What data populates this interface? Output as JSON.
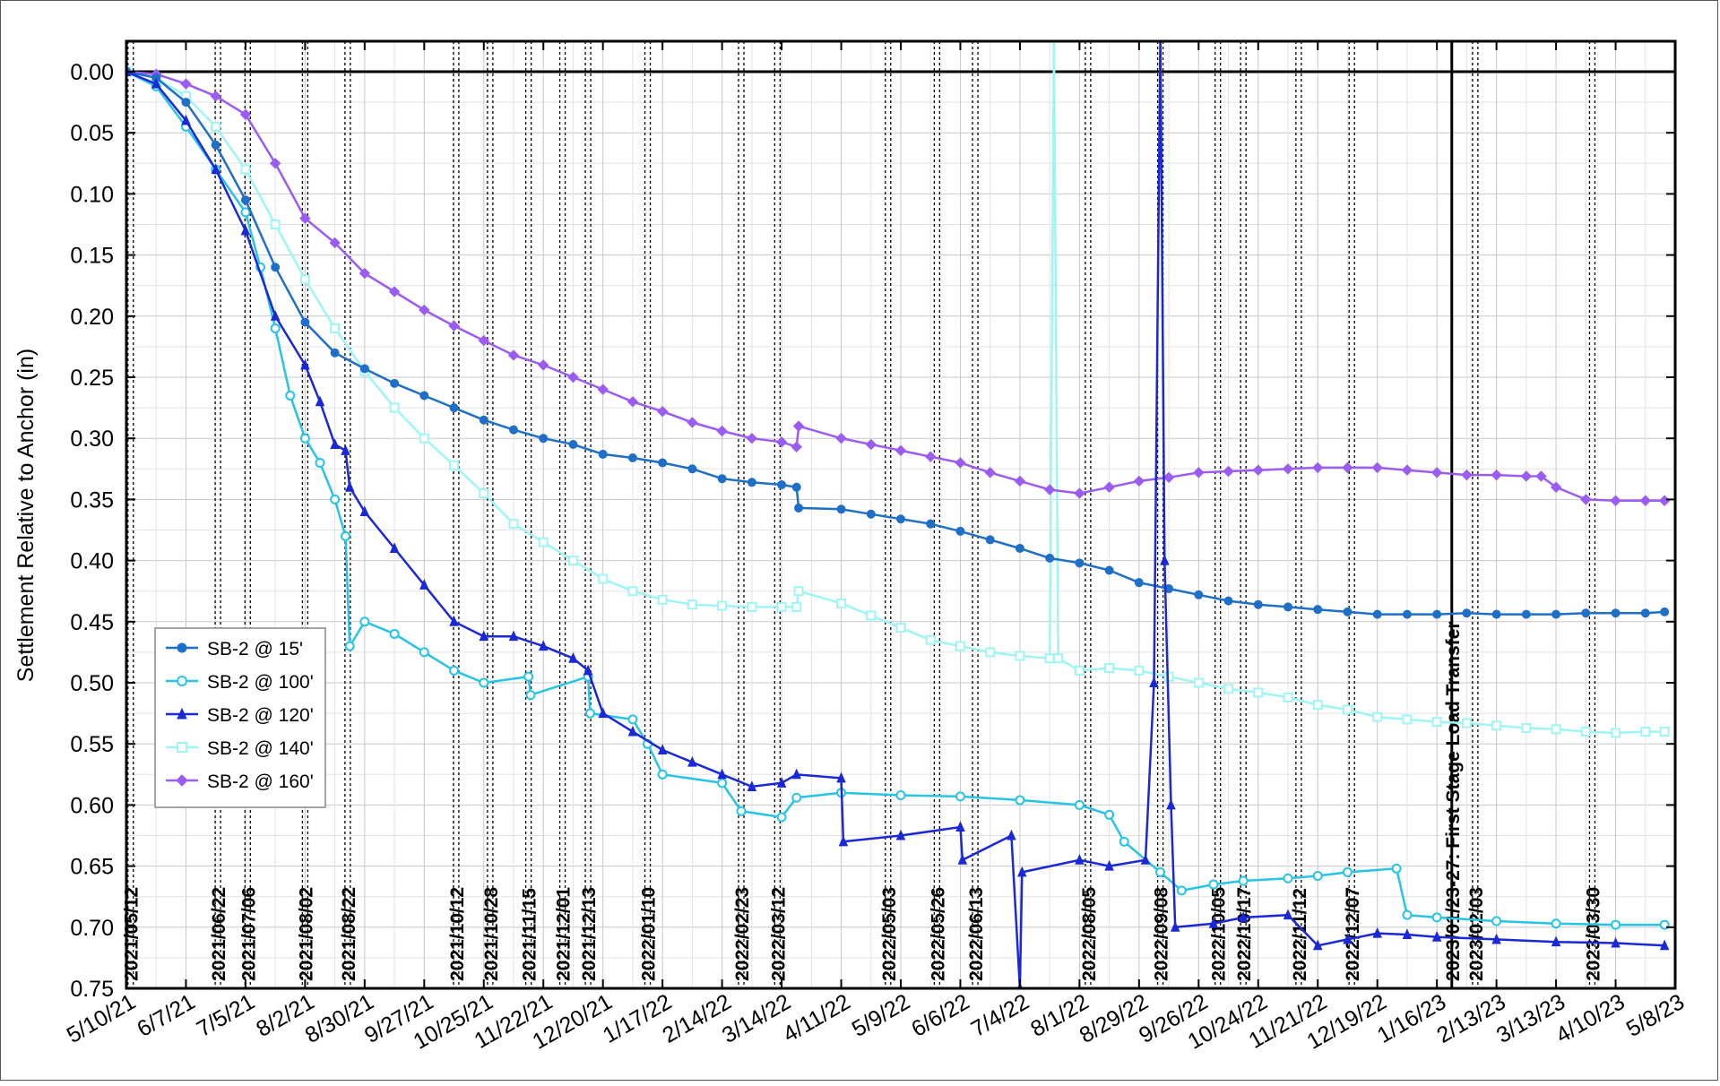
{
  "chart_data": {
    "type": "line",
    "title": "",
    "xlabel": "",
    "ylabel": "Settlement Relative to Anchor (in)",
    "xlim": [
      "2021-05-10",
      "2023-05-08"
    ],
    "ylim": [
      0.0,
      0.75
    ],
    "y_inverted": true,
    "grid": true,
    "legend_position": "left-center",
    "y_ticks": [
      "0.00",
      "0.05",
      "0.10",
      "0.15",
      "0.20",
      "0.25",
      "0.30",
      "0.35",
      "0.40",
      "0.45",
      "0.50",
      "0.55",
      "0.60",
      "0.65",
      "0.70",
      "0.75"
    ],
    "x_tick_labels": [
      "5/10/21",
      "6/7/21",
      "7/5/21",
      "8/2/21",
      "8/30/21",
      "9/27/21",
      "10/25/21",
      "11/22/21",
      "12/20/21",
      "1/17/22",
      "2/14/22",
      "3/14/22",
      "4/11/22",
      "5/9/22",
      "6/6/22",
      "7/4/22",
      "8/1/22",
      "8/29/22",
      "9/26/22",
      "10/24/22",
      "11/21/22",
      "12/19/22",
      "1/16/23",
      "2/13/23",
      "3/13/23",
      "4/10/23",
      "5/8/23"
    ],
    "x_tick_dates": [
      "2021-05-10",
      "2021-06-07",
      "2021-07-05",
      "2021-08-02",
      "2021-08-30",
      "2021-09-27",
      "2021-10-25",
      "2021-11-22",
      "2021-12-20",
      "2022-01-17",
      "2022-02-14",
      "2022-03-14",
      "2022-04-11",
      "2022-05-09",
      "2022-06-06",
      "2022-07-04",
      "2022-08-01",
      "2022-08-29",
      "2022-09-26",
      "2022-10-24",
      "2022-11-21",
      "2022-12-19",
      "2023-01-16",
      "2023-02-13",
      "2023-03-13",
      "2023-04-10",
      "2023-05-08"
    ],
    "events": [
      {
        "date": "2021-05-12",
        "label": "2021/05/12"
      },
      {
        "date": "2021-06-22",
        "label": "2021/06/22"
      },
      {
        "date": "2021-07-06",
        "label": "2021/07/06"
      },
      {
        "date": "2021-08-02",
        "label": "2021/08/02"
      },
      {
        "date": "2021-08-22",
        "label": "2021/08/22"
      },
      {
        "date": "2021-10-12",
        "label": "2021/10/12"
      },
      {
        "date": "2021-10-28",
        "label": "2021/10/28"
      },
      {
        "date": "2021-11-15",
        "label": "2021/11/15"
      },
      {
        "date": "2021-12-01",
        "label": "2021/12/01"
      },
      {
        "date": "2021-12-13",
        "label": "2021/12/13"
      },
      {
        "date": "2022-01-10",
        "label": "2022/01/10"
      },
      {
        "date": "2022-02-23",
        "label": "2022/02/23"
      },
      {
        "date": "2022-03-12",
        "label": "2022/03/12"
      },
      {
        "date": "2022-05-03",
        "label": "2022/05/03"
      },
      {
        "date": "2022-05-26",
        "label": "2022/05/26"
      },
      {
        "date": "2022-06-13",
        "label": "2022/06/13"
      },
      {
        "date": "2022-08-05",
        "label": "2022/08/05"
      },
      {
        "date": "2022-09-08",
        "label": "2022/09/08"
      },
      {
        "date": "2022-10-05",
        "label": "2022/10/05"
      },
      {
        "date": "2022-10-17",
        "label": "2022/10/17"
      },
      {
        "date": "2022-11-12",
        "label": "2022/11/12"
      },
      {
        "date": "2022-12-07",
        "label": "2022/12/07"
      },
      {
        "date": "2023-01-23",
        "label": "2023/01/23-27: First Stage Load Transfer",
        "solid": true
      },
      {
        "date": "2023-02-03",
        "label": "2023/02/03"
      },
      {
        "date": "2023-03-30",
        "label": "2023/03/30"
      }
    ],
    "series": [
      {
        "name": "SB-2 @ 15'",
        "color": "#1f6fc8",
        "marker": "circle-filled",
        "x": [
          "2021-05-10",
          "2021-05-24",
          "2021-06-07",
          "2021-06-21",
          "2021-07-05",
          "2021-07-19",
          "2021-08-02",
          "2021-08-16",
          "2021-08-30",
          "2021-09-13",
          "2021-09-27",
          "2021-10-11",
          "2021-10-25",
          "2021-11-08",
          "2021-11-22",
          "2021-12-06",
          "2021-12-20",
          "2022-01-03",
          "2022-01-17",
          "2022-01-31",
          "2022-02-14",
          "2022-02-28",
          "2022-03-14",
          "2022-03-21",
          "2022-03-22",
          "2022-04-11",
          "2022-04-25",
          "2022-05-09",
          "2022-05-23",
          "2022-06-06",
          "2022-06-20",
          "2022-07-04",
          "2022-07-18",
          "2022-08-01",
          "2022-08-15",
          "2022-08-29",
          "2022-09-12",
          "2022-09-26",
          "2022-10-10",
          "2022-10-24",
          "2022-11-07",
          "2022-11-21",
          "2022-12-05",
          "2022-12-19",
          "2023-01-02",
          "2023-01-16",
          "2023-01-30",
          "2023-02-13",
          "2023-02-27",
          "2023-03-13",
          "2023-03-27",
          "2023-04-10",
          "2023-04-24",
          "2023-05-03"
        ],
        "values": [
          0.0,
          0.005,
          0.025,
          0.06,
          0.105,
          0.16,
          0.205,
          0.23,
          0.243,
          0.255,
          0.265,
          0.275,
          0.285,
          0.293,
          0.3,
          0.305,
          0.313,
          0.316,
          0.32,
          0.325,
          0.333,
          0.336,
          0.338,
          0.34,
          0.357,
          0.358,
          0.362,
          0.366,
          0.37,
          0.376,
          0.383,
          0.39,
          0.398,
          0.402,
          0.408,
          0.418,
          0.423,
          0.428,
          0.433,
          0.436,
          0.438,
          0.44,
          0.442,
          0.444,
          0.444,
          0.444,
          0.443,
          0.444,
          0.444,
          0.444,
          0.443,
          0.443,
          0.443,
          0.442
        ]
      },
      {
        "name": "SB-2 @ 100'",
        "color": "#27c4e6",
        "marker": "circle-open",
        "x": [
          "2021-05-10",
          "2021-05-24",
          "2021-06-07",
          "2021-06-21",
          "2021-07-05",
          "2021-07-12",
          "2021-07-19",
          "2021-07-26",
          "2021-08-02",
          "2021-08-09",
          "2021-08-16",
          "2021-08-21",
          "2021-08-23",
          "2021-08-30",
          "2021-09-13",
          "2021-09-27",
          "2021-10-11",
          "2021-10-25",
          "2021-11-15",
          "2021-11-16",
          "2021-12-13",
          "2021-12-14",
          "2022-01-03",
          "2022-01-10",
          "2022-01-17",
          "2022-02-14",
          "2022-02-23",
          "2022-03-14",
          "2022-03-21",
          "2022-04-11",
          "2022-05-09",
          "2022-06-06",
          "2022-07-04",
          "2022-08-01",
          "2022-08-15",
          "2022-08-22",
          "2022-09-08",
          "2022-09-18",
          "2022-10-03",
          "2022-10-17",
          "2022-11-07",
          "2022-11-21",
          "2022-12-05",
          "2022-12-28",
          "2023-01-02",
          "2023-01-16",
          "2023-02-13",
          "2023-03-13",
          "2023-04-10",
          "2023-05-03"
        ],
        "values": [
          0.0,
          0.012,
          0.045,
          0.08,
          0.115,
          0.16,
          0.21,
          0.265,
          0.3,
          0.32,
          0.35,
          0.38,
          0.47,
          0.45,
          0.46,
          0.475,
          0.49,
          0.5,
          0.495,
          0.51,
          0.495,
          0.525,
          0.53,
          0.55,
          0.575,
          0.582,
          0.605,
          0.61,
          0.594,
          0.59,
          0.592,
          0.593,
          0.596,
          0.6,
          0.608,
          0.63,
          0.655,
          0.67,
          0.665,
          0.662,
          0.66,
          0.658,
          0.655,
          0.652,
          0.69,
          0.692,
          0.695,
          0.697,
          0.698,
          0.698
        ]
      },
      {
        "name": "SB-2 @ 120'",
        "color": "#1a28d8",
        "marker": "triangle",
        "x": [
          "2021-05-10",
          "2021-05-24",
          "2021-06-07",
          "2021-06-21",
          "2021-07-05",
          "2021-07-19",
          "2021-08-02",
          "2021-08-09",
          "2021-08-16",
          "2021-08-21",
          "2021-08-23",
          "2021-08-30",
          "2021-09-13",
          "2021-09-27",
          "2021-10-11",
          "2021-10-25",
          "2021-11-08",
          "2021-11-22",
          "2021-12-06",
          "2021-12-13",
          "2021-12-20",
          "2022-01-03",
          "2022-01-17",
          "2022-01-31",
          "2022-02-14",
          "2022-02-28",
          "2022-03-14",
          "2022-03-21",
          "2022-04-11",
          "2022-04-12",
          "2022-05-09",
          "2022-06-06",
          "2022-06-07",
          "2022-06-30",
          "2022-07-04",
          "2022-07-05",
          "2022-08-01",
          "2022-08-15",
          "2022-09-01",
          "2022-09-05",
          "2022-09-08",
          "2022-09-10",
          "2022-09-13",
          "2022-09-15",
          "2022-10-03",
          "2022-10-17",
          "2022-11-07",
          "2022-11-21",
          "2022-12-05",
          "2022-12-19",
          "2023-01-02",
          "2023-01-16",
          "2023-02-13",
          "2023-03-13",
          "2023-04-10",
          "2023-05-03"
        ],
        "values": [
          0.0,
          0.01,
          0.04,
          0.08,
          0.13,
          0.2,
          0.24,
          0.27,
          0.305,
          0.31,
          0.34,
          0.36,
          0.39,
          0.42,
          0.45,
          0.462,
          0.462,
          0.47,
          0.48,
          0.49,
          0.525,
          0.54,
          0.555,
          0.565,
          0.575,
          0.585,
          0.582,
          0.575,
          0.578,
          0.63,
          0.625,
          0.618,
          0.645,
          0.625,
          0.75,
          0.655,
          0.645,
          0.65,
          0.645,
          0.5,
          -0.05,
          0.4,
          0.6,
          0.7,
          0.697,
          0.692,
          0.69,
          0.715,
          0.71,
          0.705,
          0.706,
          0.708,
          0.71,
          0.712,
          0.713,
          0.715
        ]
      },
      {
        "name": "SB-2 @ 140'",
        "color": "#9ef6f4",
        "marker": "square-open",
        "x": [
          "2021-05-10",
          "2021-05-24",
          "2021-06-07",
          "2021-06-21",
          "2021-07-05",
          "2021-07-19",
          "2021-08-02",
          "2021-08-16",
          "2021-08-30",
          "2021-09-13",
          "2021-09-27",
          "2021-10-11",
          "2021-10-25",
          "2021-11-08",
          "2021-11-22",
          "2021-12-06",
          "2021-12-20",
          "2022-01-03",
          "2022-01-17",
          "2022-01-31",
          "2022-02-14",
          "2022-02-28",
          "2022-03-14",
          "2022-03-21",
          "2022-03-22",
          "2022-04-11",
          "2022-04-25",
          "2022-05-09",
          "2022-05-23",
          "2022-06-06",
          "2022-06-20",
          "2022-07-04",
          "2022-07-18",
          "2022-07-20",
          "2022-07-22",
          "2022-08-01",
          "2022-08-15",
          "2022-08-29",
          "2022-09-12",
          "2022-09-26",
          "2022-10-10",
          "2022-10-24",
          "2022-11-07",
          "2022-11-21",
          "2022-12-05",
          "2022-12-19",
          "2023-01-02",
          "2023-01-16",
          "2023-01-30",
          "2023-02-13",
          "2023-02-27",
          "2023-03-13",
          "2023-03-27",
          "2023-04-10",
          "2023-04-24",
          "2023-05-03"
        ],
        "values": [
          0.0,
          0.005,
          0.02,
          0.045,
          0.08,
          0.125,
          0.17,
          0.21,
          0.245,
          0.275,
          0.3,
          0.322,
          0.345,
          0.37,
          0.385,
          0.4,
          0.415,
          0.425,
          0.432,
          0.436,
          0.437,
          0.438,
          0.438,
          0.438,
          0.425,
          0.435,
          0.445,
          0.455,
          0.465,
          0.47,
          0.475,
          0.478,
          0.48,
          -0.03,
          0.48,
          0.49,
          0.488,
          0.49,
          0.495,
          0.5,
          0.505,
          0.508,
          0.512,
          0.518,
          0.522,
          0.528,
          0.53,
          0.532,
          0.533,
          0.535,
          0.537,
          0.538,
          0.54,
          0.541,
          0.54,
          0.54
        ]
      },
      {
        "name": "SB-2 @ 160'",
        "color": "#9b5cf2",
        "marker": "diamond",
        "x": [
          "2021-05-10",
          "2021-05-24",
          "2021-06-07",
          "2021-06-21",
          "2021-07-05",
          "2021-07-19",
          "2021-08-02",
          "2021-08-16",
          "2021-08-30",
          "2021-09-13",
          "2021-09-27",
          "2021-10-11",
          "2021-10-25",
          "2021-11-08",
          "2021-11-22",
          "2021-12-06",
          "2021-12-20",
          "2022-01-03",
          "2022-01-17",
          "2022-01-31",
          "2022-02-14",
          "2022-02-28",
          "2022-03-14",
          "2022-03-21",
          "2022-03-22",
          "2022-04-11",
          "2022-04-25",
          "2022-05-09",
          "2022-05-23",
          "2022-06-06",
          "2022-06-20",
          "2022-07-04",
          "2022-07-18",
          "2022-08-01",
          "2022-08-15",
          "2022-08-29",
          "2022-09-12",
          "2022-09-26",
          "2022-10-10",
          "2022-10-24",
          "2022-11-07",
          "2022-11-21",
          "2022-12-05",
          "2022-12-19",
          "2023-01-02",
          "2023-01-16",
          "2023-01-30",
          "2023-02-13",
          "2023-02-27",
          "2023-03-06",
          "2023-03-13",
          "2023-03-27",
          "2023-04-10",
          "2023-04-24",
          "2023-05-03"
        ],
        "values": [
          0.0,
          0.002,
          0.01,
          0.02,
          0.035,
          0.075,
          0.12,
          0.14,
          0.165,
          0.18,
          0.195,
          0.208,
          0.22,
          0.232,
          0.24,
          0.25,
          0.26,
          0.27,
          0.278,
          0.287,
          0.294,
          0.3,
          0.303,
          0.307,
          0.29,
          0.3,
          0.305,
          0.31,
          0.315,
          0.32,
          0.328,
          0.335,
          0.342,
          0.345,
          0.34,
          0.335,
          0.332,
          0.328,
          0.327,
          0.326,
          0.325,
          0.324,
          0.324,
          0.324,
          0.326,
          0.328,
          0.33,
          0.33,
          0.331,
          0.331,
          0.34,
          0.35,
          0.351,
          0.351,
          0.351
        ]
      }
    ]
  }
}
